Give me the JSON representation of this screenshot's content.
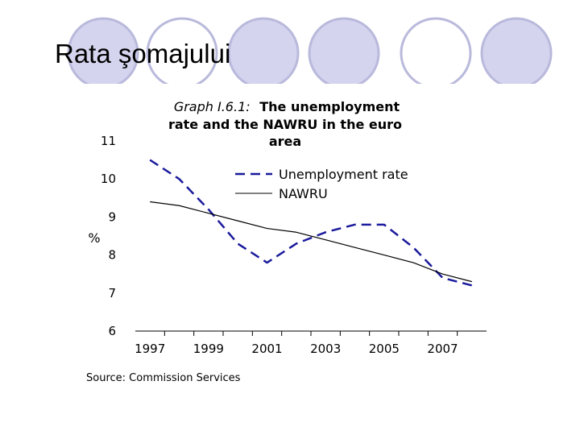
{
  "slide": {
    "title": "Rata şomajului"
  },
  "theme": {
    "circle_fill": "#d4d4ee",
    "circle_stroke": "#b9b9dc",
    "unemployment_color": "#1a1a9c",
    "nawru_color": "#000000"
  },
  "chart_data": {
    "type": "line",
    "title_prefix": "Graph I.6.1:",
    "title_lines": [
      "The unemployment",
      "rate and the NAWRU in the euro",
      "area"
    ],
    "ylabel": "%",
    "xlabel": "",
    "ylim": [
      6,
      11
    ],
    "yticks": [
      11,
      10,
      9,
      8,
      7,
      6
    ],
    "xlim": [
      1996.5,
      2008.5
    ],
    "xticks": [
      1997,
      1999,
      2001,
      2003,
      2005,
      2007
    ],
    "grid": false,
    "legend_position": "top-right",
    "source": "Source: Commission Services",
    "series": [
      {
        "name": "Unemployment rate",
        "style": "dashed",
        "x": [
          1997,
          1998,
          1999,
          2000,
          2001,
          2002,
          2003,
          2004,
          2005,
          2006,
          2007,
          2008
        ],
        "y": [
          10.5,
          10.0,
          9.2,
          8.3,
          7.8,
          8.3,
          8.6,
          8.8,
          8.8,
          8.2,
          7.4,
          7.2
        ]
      },
      {
        "name": "NAWRU",
        "style": "solid",
        "x": [
          1997,
          1998,
          1999,
          2000,
          2001,
          2002,
          2003,
          2004,
          2005,
          2006,
          2007,
          2008
        ],
        "y": [
          9.4,
          9.3,
          9.1,
          8.9,
          8.7,
          8.6,
          8.4,
          8.2,
          8.0,
          7.8,
          7.5,
          7.3
        ]
      }
    ]
  }
}
